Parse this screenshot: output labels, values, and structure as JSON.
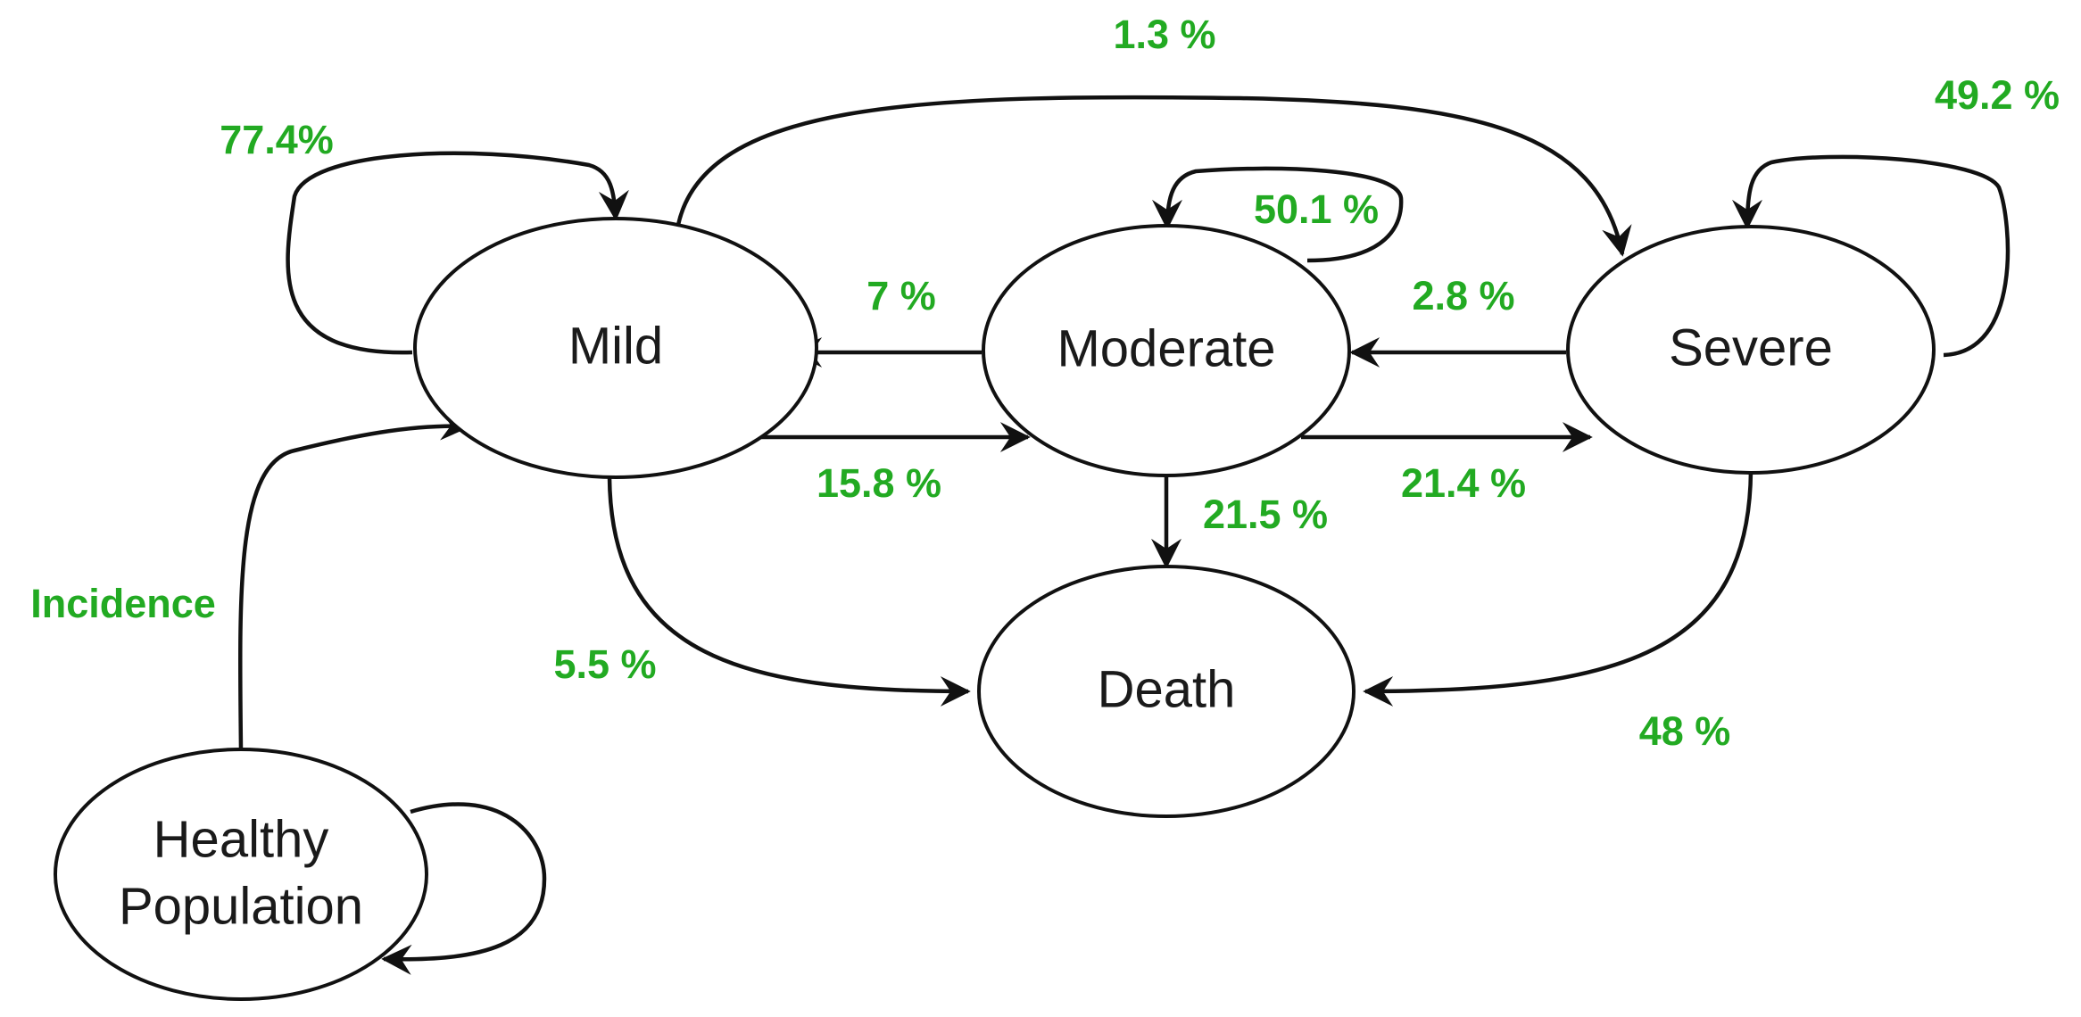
{
  "colors": {
    "label": "#22aa22",
    "stroke": "#111111",
    "node_fill": "#ffffff"
  },
  "nodes": {
    "mild": "Mild",
    "moderate": "Moderate",
    "severe": "Severe",
    "death": "Death",
    "healthy_line1": "Healthy",
    "healthy_line2": "Population"
  },
  "edges": {
    "mild_to_mild": "77.4%",
    "mild_to_severe": "1.3 %",
    "severe_to_severe": "49.2 %",
    "moderate_to_moderate": "50.1 %",
    "moderate_to_mild": "7 %",
    "severe_to_moderate": "2.8 %",
    "mild_to_moderate": "15.8 %",
    "moderate_to_severe": "21.4 %",
    "moderate_to_death": "21.5 %",
    "mild_to_death": "5.5 %",
    "severe_to_death": "48 %",
    "healthy_to_mild": "Incidence"
  }
}
